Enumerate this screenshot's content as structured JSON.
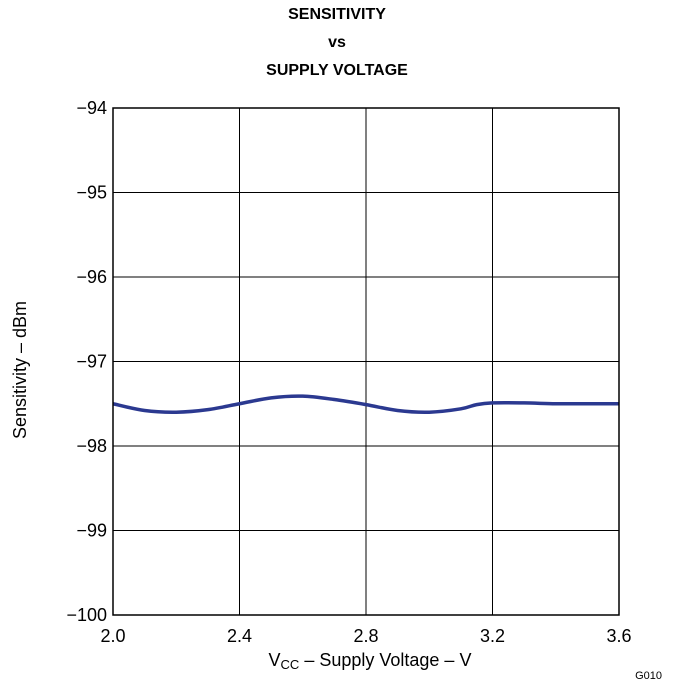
{
  "chart_data": {
    "type": "line",
    "title": [
      "SENSITIVITY",
      "vs",
      "SUPPLY VOLTAGE"
    ],
    "xlabel_main": "V",
    "xlabel_sub": "CC",
    "xlabel_rest": " – Supply Voltage – V",
    "ylabel": "Sensitivity – dBm",
    "figure_id": "G010",
    "xlim": [
      2.0,
      3.6
    ],
    "ylim": [
      -100,
      -94
    ],
    "x_ticks": [
      "2.0",
      "2.4",
      "2.8",
      "3.2",
      "3.6"
    ],
    "y_ticks": [
      "−94",
      "−95",
      "−96",
      "−97",
      "−98",
      "−99",
      "−100"
    ],
    "x_grid": [
      2.0,
      2.4,
      2.8,
      3.2,
      3.6
    ],
    "y_grid": [
      -94,
      -95,
      -96,
      -97,
      -98,
      -99,
      -100
    ],
    "grid": true,
    "series": [
      {
        "color": "#2b3990",
        "x": [
          2.0,
          2.1,
          2.2,
          2.3,
          2.4,
          2.5,
          2.6,
          2.7,
          2.8,
          2.9,
          3.0,
          3.1,
          3.15,
          3.2,
          3.3,
          3.4,
          3.5,
          3.6
        ],
        "y": [
          -97.5,
          -97.58,
          -97.6,
          -97.57,
          -97.5,
          -97.43,
          -97.41,
          -97.45,
          -97.51,
          -97.58,
          -97.6,
          -97.56,
          -97.51,
          -97.49,
          -97.49,
          -97.5,
          -97.5,
          -97.5
        ]
      }
    ]
  }
}
